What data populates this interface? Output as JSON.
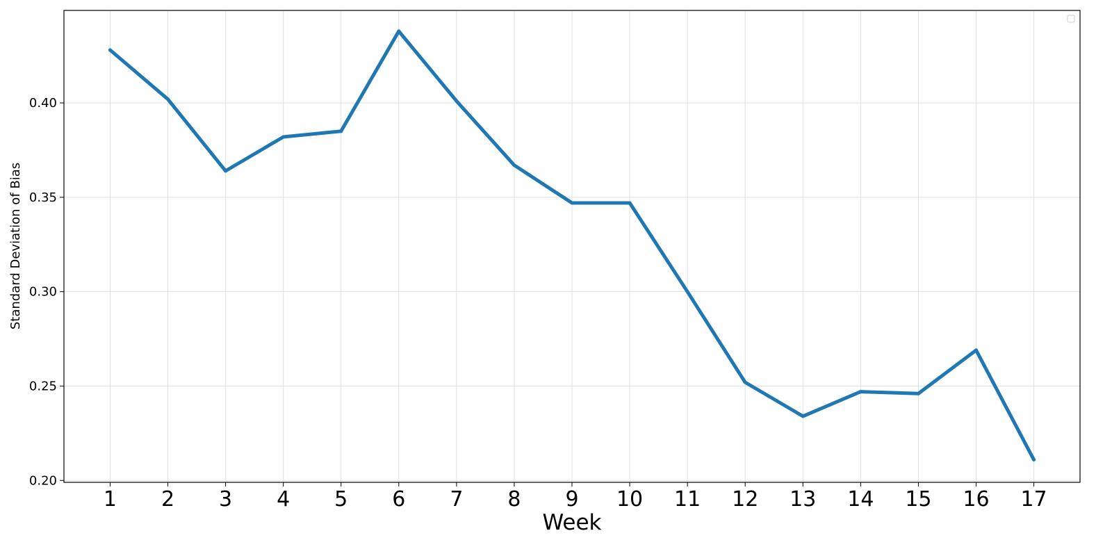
{
  "chart_data": {
    "type": "line",
    "title": "",
    "xlabel": "Week",
    "ylabel": "Standard Deviation of Bias",
    "x": [
      1,
      2,
      3,
      4,
      5,
      6,
      7,
      8,
      9,
      10,
      11,
      12,
      13,
      14,
      15,
      16,
      17
    ],
    "x_tick_labels": [
      "1",
      "2",
      "3",
      "4",
      "5",
      "6",
      "7",
      "8",
      "9",
      "10",
      "11",
      "12",
      "13",
      "14",
      "15",
      "16",
      "17"
    ],
    "y_ticks": [
      0.2,
      0.25,
      0.3,
      0.35,
      0.4
    ],
    "y_tick_labels": [
      "0.20",
      "0.25",
      "0.30",
      "0.35",
      "0.40"
    ],
    "xlim": [
      0.2,
      17.8
    ],
    "ylim": [
      0.199,
      0.449
    ],
    "grid": true,
    "legend": "top-right",
    "series": [
      {
        "color": "#1f77b4",
        "values": [
          0.428,
          0.402,
          0.364,
          0.382,
          0.385,
          0.438,
          0.401,
          0.367,
          0.347,
          0.347,
          0.3,
          0.252,
          0.234,
          0.247,
          0.246,
          0.269,
          0.211
        ]
      }
    ]
  }
}
